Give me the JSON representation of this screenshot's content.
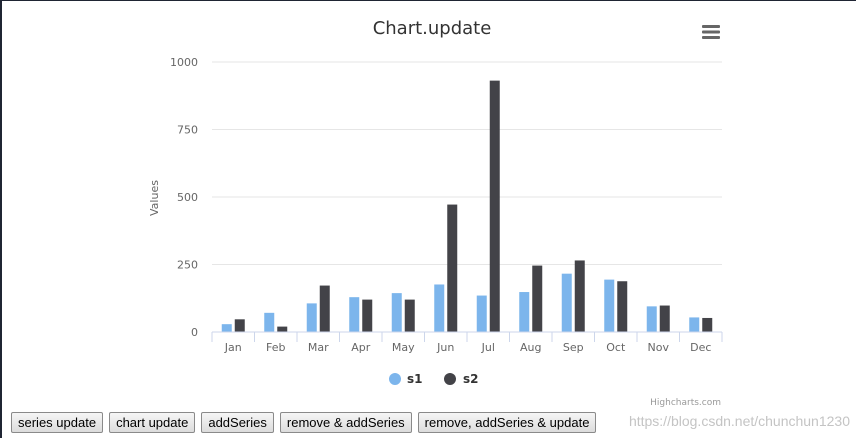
{
  "chart_data": {
    "type": "bar",
    "title": "Chart.update",
    "ylabel": "Values",
    "xlabel": "",
    "ylim": [
      0,
      1000
    ],
    "yticks": [
      0,
      250,
      500,
      750,
      1000
    ],
    "grid": true,
    "legend_position": "bottom-center",
    "categories": [
      "Jan",
      "Feb",
      "Mar",
      "Apr",
      "May",
      "Jun",
      "Jul",
      "Aug",
      "Sep",
      "Oct",
      "Nov",
      "Dec"
    ],
    "series": [
      {
        "name": "s1",
        "color": "#7cb5ec",
        "values": [
          29,
          71,
          106,
          129,
          144,
          176,
          135,
          148,
          216,
          194,
          95,
          54
        ]
      },
      {
        "name": "s2",
        "color": "#434348",
        "values": [
          47,
          20,
          172,
          120,
          120,
          472,
          931,
          246,
          265,
          188,
          98,
          52
        ]
      }
    ]
  },
  "menu": {
    "icon": "hamburger-menu-icon"
  },
  "credits": "Highcharts.com",
  "buttons": [
    {
      "label": "series update"
    },
    {
      "label": "chart update"
    },
    {
      "label": "addSeries"
    },
    {
      "label": "remove & addSeries"
    },
    {
      "label": "remove, addSeries & update"
    }
  ],
  "watermark": "https://blog.csdn.net/chunchun1230"
}
